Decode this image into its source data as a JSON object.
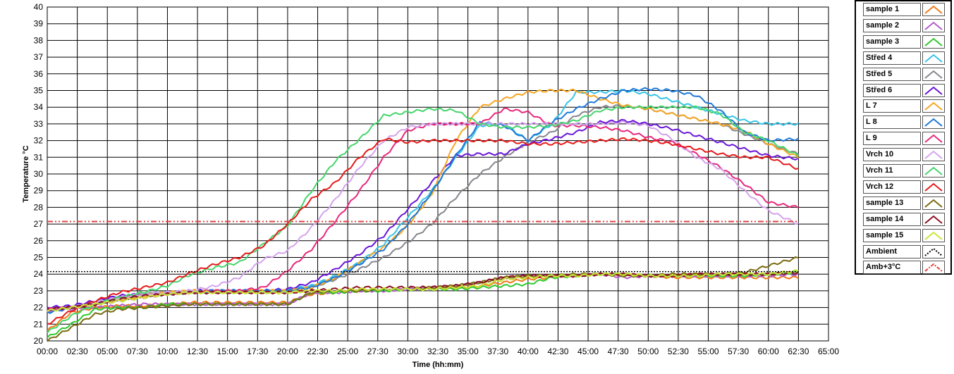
{
  "chart_data": {
    "type": "line",
    "xlabel": "Time (hh:mm)",
    "ylabel": "Temperature °C",
    "xlim": [
      0,
      65
    ],
    "ylim": [
      20,
      40
    ],
    "x_ticks": [
      0,
      2.5,
      5,
      7.5,
      10,
      12.5,
      15,
      17.5,
      20,
      22.5,
      25,
      27.5,
      30,
      32.5,
      35,
      37.5,
      40,
      42.5,
      45,
      47.5,
      50,
      52.5,
      55,
      57.5,
      60,
      62.5,
      65
    ],
    "x_tick_labels": [
      "00:00",
      "02:30",
      "05:00",
      "07:30",
      "10:00",
      "12:30",
      "15:00",
      "17:30",
      "20:00",
      "22:30",
      "25:00",
      "27:30",
      "30:00",
      "32:30",
      "35:00",
      "37:30",
      "40:00",
      "42:30",
      "45:00",
      "47:30",
      "50:00",
      "52:30",
      "55:00",
      "57:30",
      "60:00",
      "62:30",
      "65:00"
    ],
    "y_ticks": [
      20,
      21,
      22,
      23,
      24,
      25,
      26,
      27,
      28,
      29,
      30,
      31,
      32,
      33,
      34,
      35,
      36,
      37,
      38,
      39,
      40
    ],
    "grid": true,
    "legend_position": "right",
    "series": [
      {
        "name": "sample 1",
        "color": "#ef7a1a",
        "x": [
          0,
          2,
          4,
          6,
          8,
          10,
          12,
          14,
          16,
          18,
          20,
          22,
          24,
          26,
          28,
          30,
          32,
          34,
          36,
          38,
          40,
          42,
          44,
          46,
          48,
          50,
          52,
          54,
          56,
          58,
          60,
          62.5
        ],
        "y": [
          20.6,
          21.7,
          22.0,
          22.1,
          22.1,
          22.2,
          22.3,
          22.3,
          22.3,
          22.3,
          22.3,
          22.8,
          22.9,
          23.0,
          23.0,
          23.1,
          23.1,
          23.2,
          23.3,
          23.5,
          23.7,
          23.8,
          23.9,
          24.0,
          24.0,
          23.9,
          23.8,
          23.8,
          23.8,
          23.8,
          23.8,
          23.8
        ]
      },
      {
        "name": "sample 2",
        "color": "#b15dc9",
        "x": [
          0,
          2,
          4,
          6,
          8,
          10,
          12,
          14,
          16,
          18,
          20,
          22,
          24,
          26,
          28,
          30,
          32,
          34,
          36,
          38,
          40,
          42,
          44,
          46,
          48,
          50,
          52,
          54,
          56,
          58,
          60,
          62.5
        ],
        "y": [
          21.8,
          21.9,
          22.0,
          22.1,
          22.2,
          22.2,
          22.2,
          22.2,
          22.2,
          22.2,
          22.2,
          22.9,
          22.9,
          23.0,
          23.0,
          23.1,
          23.2,
          23.3,
          23.5,
          23.8,
          23.9,
          23.9,
          23.9,
          24.0,
          23.8,
          23.9,
          23.9,
          23.9,
          23.9,
          23.9,
          23.9,
          24.0
        ]
      },
      {
        "name": "sample 3",
        "color": "#2fc92f",
        "x": [
          0,
          2,
          4,
          6,
          8,
          10,
          12,
          14,
          16,
          18,
          20,
          22,
          24,
          26,
          28,
          30,
          32,
          34,
          36,
          38,
          40,
          42,
          44,
          46,
          48,
          50,
          52,
          54,
          56,
          58,
          60,
          62.5
        ],
        "y": [
          20.2,
          21.0,
          21.9,
          22.0,
          22.0,
          22.2,
          22.2,
          22.2,
          22.2,
          22.2,
          22.2,
          22.9,
          22.9,
          23.0,
          23.0,
          23.1,
          23.1,
          23.1,
          23.2,
          23.3,
          23.4,
          23.8,
          23.9,
          24.0,
          24.0,
          23.9,
          23.9,
          23.9,
          23.9,
          23.9,
          24.0,
          24.1
        ]
      },
      {
        "name": "Střed 4",
        "color": "#38c3e6",
        "x": [
          0,
          2,
          4,
          6,
          8,
          10,
          12,
          14,
          16,
          18,
          20,
          22,
          24,
          26,
          28,
          30,
          32,
          34,
          36,
          38,
          40,
          42,
          44,
          46,
          48,
          50,
          52,
          54,
          56,
          58,
          60,
          62.5
        ],
        "y": [
          22.0,
          22.1,
          22.3,
          22.6,
          22.8,
          22.9,
          23.0,
          23.0,
          23.0,
          23.0,
          23.1,
          23.3,
          23.9,
          24.7,
          25.8,
          27.4,
          29.0,
          31.0,
          32.9,
          33.0,
          32.0,
          33.0,
          34.9,
          34.9,
          35.0,
          34.8,
          34.4,
          34.0,
          33.6,
          33.2,
          33.0,
          33.0
        ]
      },
      {
        "name": "Střed 5",
        "color": "#86868c",
        "x": [
          0,
          2,
          4,
          6,
          8,
          10,
          12,
          14,
          16,
          18,
          20,
          22,
          24,
          26,
          28,
          30,
          32,
          34,
          36,
          38,
          40,
          42,
          44,
          46,
          48,
          50,
          52,
          54,
          56,
          58,
          60,
          62.5
        ],
        "y": [
          21.9,
          22.0,
          22.2,
          22.5,
          22.8,
          22.9,
          23.0,
          23.0,
          23.0,
          23.0,
          23.0,
          23.2,
          23.7,
          24.3,
          25.0,
          25.9,
          27.0,
          28.6,
          30.0,
          31.0,
          31.9,
          32.5,
          33.5,
          34.0,
          34.1,
          33.9,
          33.6,
          33.3,
          33.0,
          32.4,
          31.8,
          31.2
        ]
      },
      {
        "name": "Střed 6",
        "color": "#6a16d8",
        "x": [
          0,
          2,
          4,
          6,
          8,
          10,
          12,
          14,
          16,
          18,
          20,
          22,
          24,
          26,
          28,
          30,
          32,
          34,
          36,
          38,
          40,
          42,
          44,
          46,
          48,
          50,
          52,
          54,
          56,
          58,
          60,
          62.5
        ],
        "y": [
          22.0,
          22.1,
          22.4,
          22.7,
          22.8,
          22.9,
          23.0,
          23.0,
          23.0,
          23.0,
          23.1,
          23.5,
          24.3,
          25.2,
          26.3,
          27.9,
          29.5,
          31.1,
          31.2,
          31.2,
          31.8,
          32.1,
          32.5,
          33.1,
          33.2,
          33.0,
          32.7,
          32.3,
          31.9,
          31.5,
          31.1,
          30.9
        ]
      },
      {
        "name": "L 7",
        "color": "#f5a623",
        "x": [
          0,
          2,
          4,
          6,
          8,
          10,
          12,
          14,
          16,
          18,
          20,
          22,
          24,
          26,
          28,
          30,
          32,
          34,
          36,
          38,
          40,
          42,
          44,
          46,
          48,
          50,
          52,
          54,
          56,
          58,
          60,
          62.5
        ],
        "y": [
          21.8,
          22.0,
          22.2,
          22.5,
          22.7,
          22.9,
          23.0,
          23.0,
          23.0,
          23.0,
          23.0,
          23.2,
          23.8,
          24.7,
          25.6,
          26.9,
          28.8,
          32.0,
          34.0,
          34.5,
          34.9,
          35.0,
          35.0,
          34.5,
          34.1,
          33.9,
          33.6,
          33.3,
          33.0,
          32.6,
          31.8,
          31.0
        ]
      },
      {
        "name": "L 8",
        "color": "#1f78d6",
        "x": [
          0,
          2,
          4,
          6,
          8,
          10,
          12,
          14,
          16,
          18,
          20,
          22,
          24,
          26,
          28,
          30,
          32,
          34,
          36,
          38,
          40,
          42,
          44,
          46,
          48,
          50,
          52,
          54,
          56,
          58,
          60,
          62.5
        ],
        "y": [
          21.7,
          22.0,
          22.2,
          22.5,
          22.7,
          22.8,
          22.9,
          23.0,
          23.0,
          23.0,
          23.0,
          23.2,
          23.8,
          24.6,
          25.5,
          27.0,
          28.9,
          31.1,
          33.1,
          32.9,
          32.0,
          33.1,
          33.9,
          34.5,
          35.0,
          35.1,
          35.0,
          34.7,
          33.8,
          32.5,
          32.0,
          32.1
        ]
      },
      {
        "name": "L 9",
        "color": "#e8287c",
        "x": [
          0,
          2,
          4,
          6,
          8,
          10,
          12,
          14,
          16,
          18,
          20,
          22,
          24,
          26,
          28,
          30,
          32,
          34,
          36,
          38,
          40,
          42,
          44,
          46,
          48,
          50,
          52,
          54,
          56,
          58,
          60,
          62.5
        ],
        "y": [
          21.9,
          22.0,
          22.2,
          22.4,
          22.6,
          22.8,
          22.9,
          23.0,
          23.0,
          23.2,
          24.2,
          25.5,
          27.2,
          29.0,
          31.0,
          32.6,
          33.0,
          33.0,
          33.0,
          33.9,
          33.7,
          32.9,
          32.9,
          32.8,
          32.6,
          32.2,
          31.9,
          31.2,
          30.4,
          29.4,
          28.3,
          28.0
        ]
      },
      {
        "name": "Vrch 10",
        "color": "#d4a3ec",
        "x": [
          0,
          2,
          4,
          6,
          8,
          10,
          12,
          14,
          16,
          18,
          20,
          22,
          24,
          26,
          28,
          30,
          32,
          34,
          36,
          38,
          40,
          42,
          44,
          46,
          48,
          50,
          52,
          54,
          56,
          58,
          60,
          62.5
        ],
        "y": [
          21.9,
          22.0,
          22.3,
          22.6,
          22.8,
          22.9,
          23.0,
          23.3,
          23.8,
          24.9,
          25.4,
          26.8,
          28.5,
          30.4,
          32.0,
          32.8,
          33.0,
          33.0,
          33.0,
          33.0,
          33.0,
          33.0,
          33.0,
          33.0,
          33.1,
          32.9,
          32.1,
          31.0,
          30.3,
          29.0,
          27.8,
          27.0
        ]
      },
      {
        "name": "Vrch 11",
        "color": "#45d56b",
        "x": [
          0,
          2,
          4,
          6,
          8,
          10,
          12,
          14,
          16,
          18,
          20,
          22,
          24,
          26,
          28,
          30,
          32,
          34,
          36,
          38,
          40,
          42,
          44,
          46,
          48,
          50,
          52,
          54,
          56,
          58,
          60,
          62.5
        ],
        "y": [
          20.5,
          21.5,
          22.2,
          22.6,
          22.9,
          23.3,
          24.0,
          24.4,
          24.7,
          25.8,
          26.9,
          29.0,
          30.8,
          32.1,
          33.5,
          33.7,
          33.9,
          33.8,
          33.0,
          32.8,
          32.8,
          32.9,
          33.2,
          33.8,
          34.0,
          34.0,
          34.0,
          34.0,
          33.6,
          32.5,
          32.0,
          31.1
        ]
      },
      {
        "name": "Vrch 12",
        "color": "#e51b1b",
        "x": [
          0,
          2,
          4,
          6,
          8,
          10,
          12,
          14,
          16,
          18,
          20,
          22,
          24,
          26,
          28,
          30,
          32,
          34,
          36,
          38,
          40,
          42,
          44,
          46,
          48,
          50,
          52,
          54,
          56,
          58,
          60,
          62.5
        ],
        "y": [
          21.0,
          21.8,
          22.4,
          22.9,
          23.2,
          23.5,
          24.1,
          24.6,
          25.0,
          25.7,
          27.0,
          28.5,
          29.5,
          31.0,
          32.1,
          31.9,
          32.0,
          32.0,
          32.0,
          32.0,
          31.8,
          31.8,
          31.9,
          32.0,
          32.1,
          32.0,
          31.8,
          31.5,
          31.2,
          31.0,
          31.0,
          30.3
        ]
      },
      {
        "name": "sample 13",
        "color": "#7a6a10",
        "x": [
          0,
          2,
          4,
          6,
          8,
          10,
          12,
          14,
          16,
          18,
          20,
          22,
          24,
          26,
          28,
          30,
          32,
          34,
          36,
          38,
          40,
          42,
          44,
          46,
          48,
          50,
          52,
          54,
          56,
          58,
          60,
          62.5
        ],
        "y": [
          20.0,
          20.8,
          21.6,
          21.9,
          22.0,
          22.1,
          22.2,
          22.2,
          22.2,
          22.2,
          22.2,
          22.9,
          23.0,
          23.0,
          23.1,
          23.1,
          23.2,
          23.3,
          23.5,
          23.8,
          23.9,
          23.9,
          24.0,
          24.0,
          23.9,
          23.9,
          24.0,
          24.0,
          24.0,
          24.1,
          24.5,
          25.0
        ]
      },
      {
        "name": "sample 14",
        "color": "#8a1020",
        "x": [
          0,
          2,
          4,
          6,
          8,
          10,
          12,
          14,
          16,
          18,
          20,
          22,
          24,
          26,
          28,
          30,
          32,
          34,
          36,
          38,
          40,
          42,
          44,
          46,
          48,
          50,
          52,
          54,
          56,
          58,
          60,
          62.5
        ],
        "y": [
          21.9,
          22.0,
          22.2,
          22.5,
          22.7,
          22.8,
          22.9,
          22.9,
          22.9,
          22.9,
          22.9,
          23.0,
          23.1,
          23.2,
          23.2,
          23.2,
          23.2,
          23.3,
          23.5,
          23.8,
          23.9,
          23.9,
          23.9,
          24.0,
          24.0,
          23.9,
          23.9,
          24.0,
          24.0,
          24.0,
          24.0,
          24.1
        ]
      },
      {
        "name": "sample 15",
        "color": "#c9e63a",
        "x": [
          0,
          2,
          4,
          6,
          8,
          10,
          12,
          14,
          16,
          18,
          20,
          22,
          24,
          26,
          28,
          30,
          32,
          34,
          36,
          38,
          40,
          42,
          44,
          46,
          48,
          50,
          52,
          54,
          56,
          58,
          60,
          62.5
        ],
        "y": [
          21.8,
          22.0,
          22.2,
          22.4,
          22.6,
          22.8,
          22.9,
          22.9,
          22.9,
          22.9,
          22.9,
          23.0,
          23.0,
          23.1,
          23.1,
          23.1,
          23.1,
          23.2,
          23.3,
          23.7,
          23.8,
          23.9,
          23.9,
          24.0,
          24.0,
          23.9,
          23.9,
          23.9,
          24.0,
          24.0,
          24.0,
          24.2
        ]
      },
      {
        "name": "Ambient",
        "color": "#000000",
        "dash": "dotted",
        "x": [
          0,
          62.5
        ],
        "y": [
          24.15,
          24.15
        ]
      },
      {
        "name": "Amb+3°C",
        "color": "#e04040",
        "dash": "dashdot",
        "x": [
          0,
          62.5
        ],
        "y": [
          27.15,
          27.15
        ]
      }
    ]
  }
}
